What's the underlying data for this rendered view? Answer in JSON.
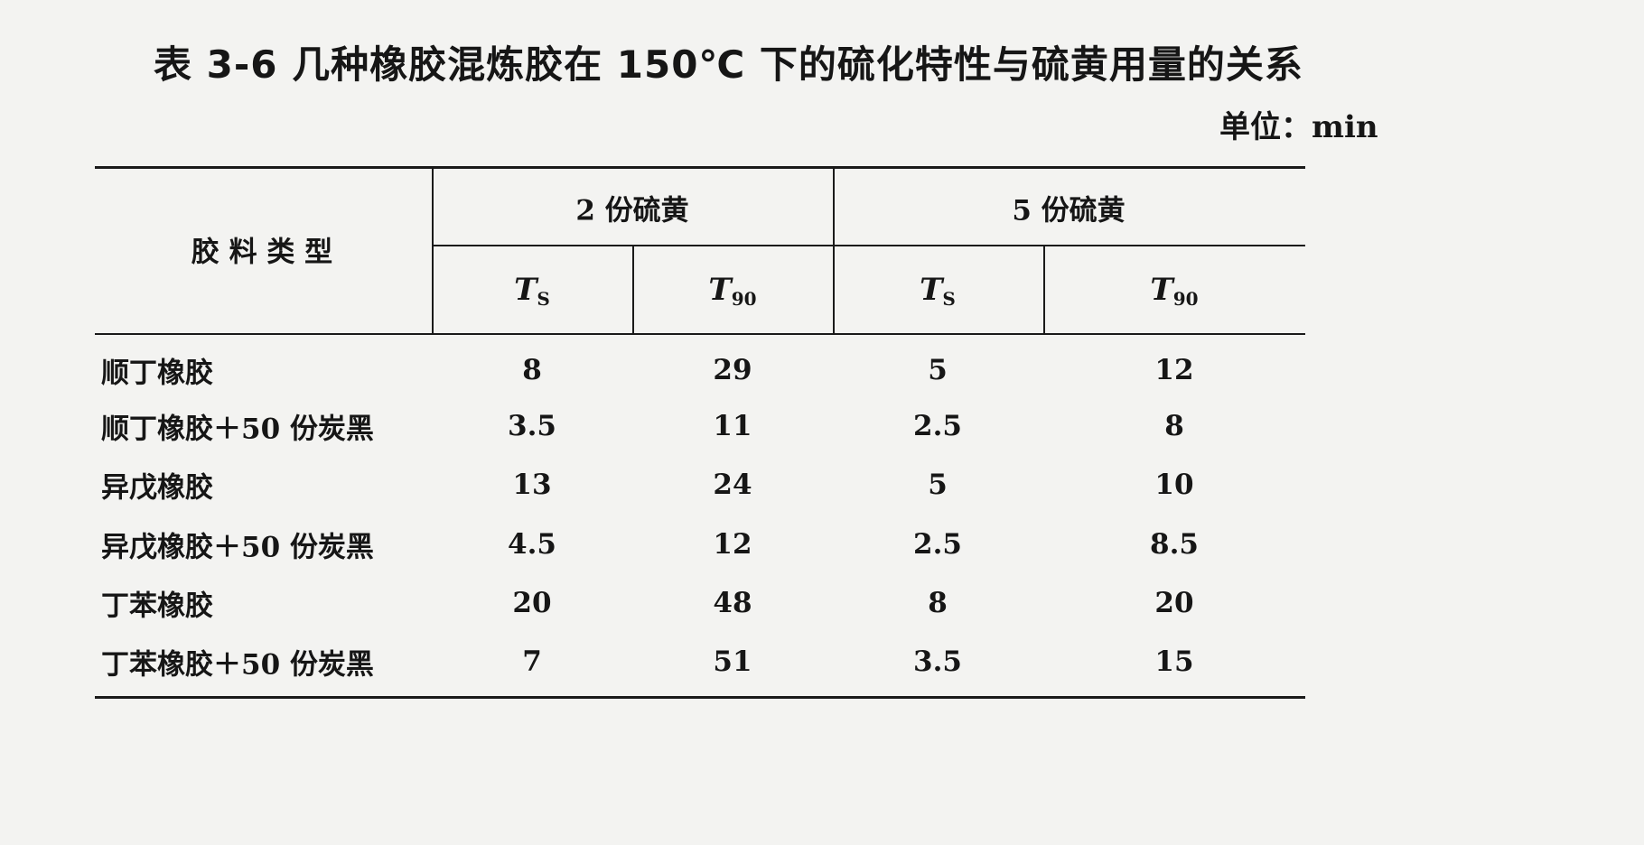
{
  "title": "表 3-6   几种橡胶混炼胶在 150℃ 下的硫化特性与硫黄用量的关系",
  "unit": "单位：min",
  "table": {
    "row_header": "胶 料 类 型",
    "groups": [
      "2 份硫黄",
      "5 份硫黄"
    ],
    "sub_columns": [
      {
        "symbol": "T",
        "subscript": "S"
      },
      {
        "symbol": "T",
        "subscript": "90"
      },
      {
        "symbol": "T",
        "subscript": "S"
      },
      {
        "symbol": "T",
        "subscript": "90"
      }
    ],
    "rows": [
      {
        "label": "顺丁橡胶",
        "values": [
          "8",
          "29",
          "5",
          "12"
        ]
      },
      {
        "label": "顺丁橡胶＋50 份炭黑",
        "values": [
          "3.5",
          "11",
          "2.5",
          "8"
        ]
      },
      {
        "label": "异戊橡胶",
        "values": [
          "13",
          "24",
          "5",
          "10"
        ]
      },
      {
        "label": "异戊橡胶＋50 份炭黑",
        "values": [
          "4.5",
          "12",
          "2.5",
          "8.5"
        ]
      },
      {
        "label": "丁苯橡胶",
        "values": [
          "20",
          "48",
          "8",
          "20"
        ]
      },
      {
        "label": "丁苯橡胶＋50 份炭黑",
        "values": [
          "7",
          "51",
          "3.5",
          "15"
        ]
      }
    ]
  }
}
